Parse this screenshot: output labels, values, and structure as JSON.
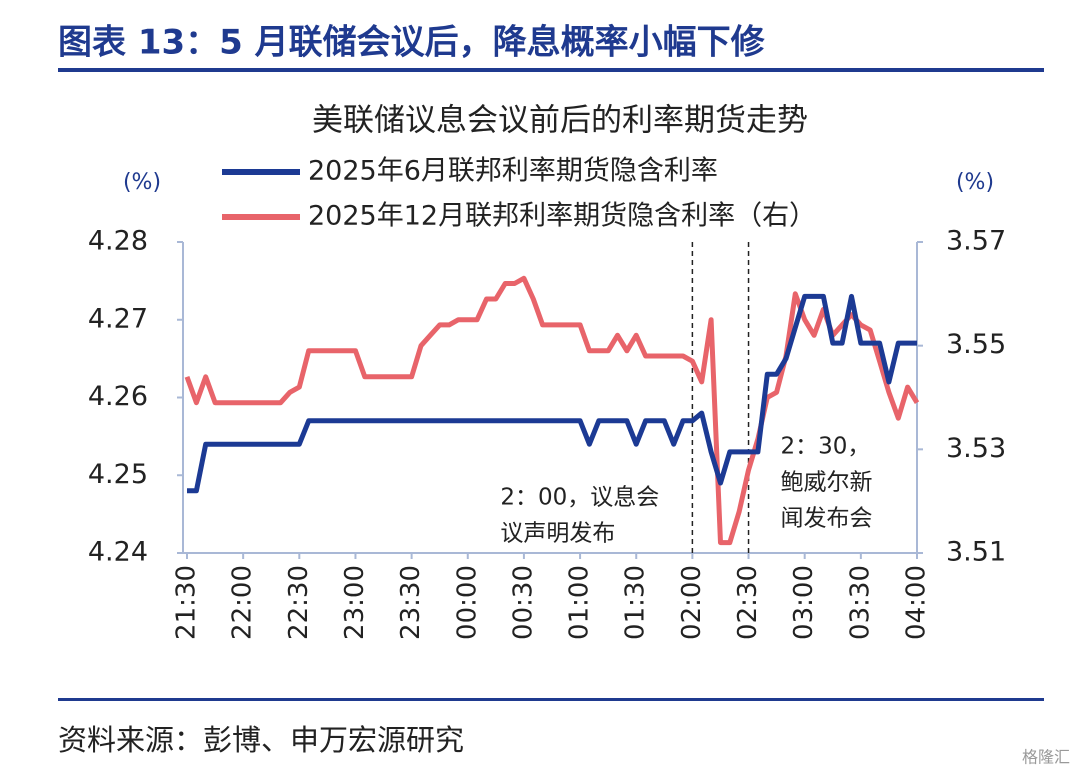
{
  "header": {
    "title": "图表 13：5 月联储会议后，降息概率小幅下修"
  },
  "chart_data": {
    "type": "line",
    "title": "美联储议息会议前后的利率期货走势",
    "y_label": "(%)",
    "y2_label": "(%)",
    "x": [
      "21:30",
      "21:35",
      "21:40",
      "21:45",
      "21:50",
      "21:55",
      "22:00",
      "22:05",
      "22:10",
      "22:15",
      "22:20",
      "22:25",
      "22:30",
      "22:35",
      "22:40",
      "22:45",
      "22:50",
      "22:55",
      "23:00",
      "23:05",
      "23:10",
      "23:15",
      "23:20",
      "23:25",
      "23:30",
      "23:35",
      "23:40",
      "23:45",
      "23:50",
      "23:55",
      "00:00",
      "00:05",
      "00:10",
      "00:15",
      "00:20",
      "00:25",
      "00:30",
      "00:35",
      "00:40",
      "00:45",
      "00:50",
      "00:55",
      "01:00",
      "01:05",
      "01:10",
      "01:15",
      "01:20",
      "01:25",
      "01:30",
      "01:35",
      "01:40",
      "01:45",
      "01:50",
      "01:55",
      "02:00",
      "02:05",
      "02:10",
      "02:15",
      "02:20",
      "02:25",
      "02:30",
      "02:35",
      "02:40",
      "02:45",
      "02:50",
      "02:55",
      "03:00",
      "03:05",
      "03:10",
      "03:15",
      "03:20",
      "03:25",
      "03:30",
      "03:35",
      "03:40",
      "03:45",
      "03:50",
      "03:55",
      "04:00"
    ],
    "xlim": [
      "21:30",
      "04:00"
    ],
    "xticks": [
      "21:30",
      "22:00",
      "22:30",
      "23:00",
      "23:30",
      "00:00",
      "00:30",
      "01:00",
      "01:30",
      "02:00",
      "02:30",
      "03:00",
      "03:30",
      "04:00"
    ],
    "ylim": [
      4.24,
      4.28
    ],
    "yticks": [
      4.24,
      4.25,
      4.26,
      4.27,
      4.28
    ],
    "y2lim": [
      3.51,
      3.57
    ],
    "y2ticks": [
      3.51,
      3.53,
      3.55,
      3.57
    ],
    "series": [
      {
        "name": "2025年6月联邦利率期货隐含利率",
        "color": "#1c3a94",
        "values": [
          4.248,
          4.248,
          4.254,
          4.254,
          4.254,
          4.254,
          4.254,
          4.254,
          4.254,
          4.254,
          4.254,
          4.254,
          4.254,
          4.257,
          4.257,
          4.257,
          4.257,
          4.257,
          4.257,
          4.257,
          4.257,
          4.257,
          4.257,
          4.257,
          4.257,
          4.257,
          4.257,
          4.257,
          4.257,
          4.257,
          4.257,
          4.257,
          4.257,
          4.257,
          4.257,
          4.257,
          4.257,
          4.257,
          4.257,
          4.257,
          4.257,
          4.257,
          4.257,
          4.254,
          4.257,
          4.257,
          4.257,
          4.257,
          4.254,
          4.257,
          4.257,
          4.257,
          4.254,
          4.257,
          4.257,
          4.258,
          4.253,
          4.249,
          4.253,
          4.253,
          4.253,
          4.253,
          4.263,
          4.263,
          4.265,
          4.269,
          4.273,
          4.273,
          4.273,
          4.267,
          4.267,
          4.273,
          4.267,
          4.267,
          4.267,
          4.262,
          4.267,
          4.267,
          4.267
        ]
      },
      {
        "name": "2025年12月联邦利率期货隐含利率（右）",
        "color": "#e8646a",
        "axis": "y2",
        "values": [
          3.544,
          3.539,
          3.544,
          3.539,
          3.539,
          3.539,
          3.539,
          3.539,
          3.539,
          3.539,
          3.539,
          3.541,
          3.542,
          3.549,
          3.549,
          3.549,
          3.549,
          3.549,
          3.549,
          3.544,
          3.544,
          3.544,
          3.544,
          3.544,
          3.544,
          3.55,
          3.552,
          3.554,
          3.554,
          3.555,
          3.555,
          3.555,
          3.559,
          3.559,
          3.562,
          3.562,
          3.563,
          3.559,
          3.554,
          3.554,
          3.554,
          3.554,
          3.554,
          3.549,
          3.549,
          3.549,
          3.552,
          3.549,
          3.552,
          3.548,
          3.548,
          3.548,
          3.548,
          3.548,
          3.547,
          3.543,
          3.555,
          3.512,
          3.512,
          3.518,
          3.526,
          3.532,
          3.54,
          3.541,
          3.548,
          3.56,
          3.555,
          3.552,
          3.557,
          3.552,
          3.554,
          3.556,
          3.554,
          3.553,
          3.547,
          3.541,
          3.536,
          3.542,
          3.539
        ]
      }
    ],
    "annotations": [
      {
        "x": "02:00",
        "lines": [
          "2：00，议息会",
          "议声明发布"
        ]
      },
      {
        "x": "02:30",
        "lines": [
          "2：30，",
          "鲍威尔新",
          "闻发布会"
        ]
      }
    ]
  },
  "footer": {
    "source": "资料来源：彭博、申万宏源研究",
    "watermark": "格隆汇"
  }
}
